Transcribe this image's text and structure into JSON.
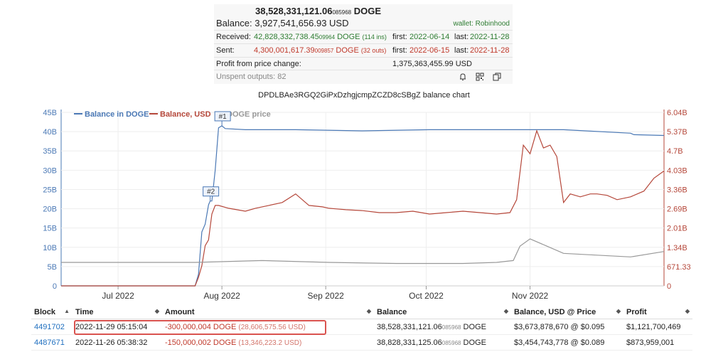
{
  "summary": {
    "balance_main": "38,528,331,121.06",
    "balance_frac": "085968",
    "balance_unit": "DOGE",
    "balance_label": "Balance:",
    "balance_usd": "3,927,541,656.93 USD",
    "wallet_tag": "wallet: Robinhood",
    "received_label": "Received:",
    "received_main": "42,828,332,738.45",
    "received_frac": "09964",
    "received_unit": "DOGE",
    "received_ins": "(114 ins)",
    "received_first_label": "first:",
    "received_first": "2022-06-14",
    "received_last_label": "last:",
    "received_last": "2022-11-28",
    "sent_label": "Sent:",
    "sent_main": "4,300,001,617.39",
    "sent_frac": "009857",
    "sent_unit": "DOGE",
    "sent_outs": "(32 outs)",
    "sent_first_label": "first:",
    "sent_first": "2022-06-15",
    "sent_last_label": "last:",
    "sent_last": "2022-11-28",
    "profit_label": "Profit from price change:",
    "profit_value": "1,375,363,455.99 USD",
    "unspent_label": "Unspent outputs: 82",
    "icons": [
      "bell-icon",
      "qr-code-icon",
      "copy-icon"
    ]
  },
  "chart_title": "DPDLBAe3RGQ2GiPxDzhgjcmpZCZD8cSBgZ balance chart",
  "chart_data": {
    "type": "line",
    "legend": [
      {
        "name": "Balance in DOGE",
        "color": "#4a78b5"
      },
      {
        "name": "Balance, USD",
        "color": "#b5473a"
      },
      {
        "name": "DOGE price",
        "color": "#999999"
      }
    ],
    "x_ticks": [
      "Jul 2022",
      "Aug 2022",
      "Sep 2022",
      "Oct 2022",
      "Nov 2022"
    ],
    "y_left_ticks": [
      "0",
      "5B",
      "10B",
      "15B",
      "20B",
      "25B",
      "30B",
      "35B",
      "40B",
      "45B"
    ],
    "y_right_ticks": [
      "0",
      "671.33",
      "1.34B",
      "2.01B",
      "2.69B",
      "3.36B",
      "4.03B",
      "4.7B",
      "5.37B",
      "6.04B"
    ],
    "y_left_range": [
      0,
      45
    ],
    "y_right_range": [
      0,
      6.04
    ],
    "x_range_days": [
      0,
      180
    ],
    "flags": [
      {
        "label": "#1"
      },
      {
        "label": "#2"
      }
    ],
    "series": [
      {
        "name": "Balance in DOGE",
        "x": [
          0,
          40,
          41,
          42,
          43,
          44,
          44.5,
          45,
          46,
          47,
          48,
          49,
          55,
          70,
          90,
          110,
          150,
          170,
          171,
          180
        ],
        "y": [
          0,
          0,
          3,
          14,
          16,
          21,
          22,
          22,
          30,
          41,
          41.5,
          40.8,
          40.5,
          40.5,
          40.2,
          40.5,
          40.5,
          39.6,
          39.2,
          39.0
        ]
      },
      {
        "name": "Balance, USD",
        "x": [
          0,
          40,
          41,
          42,
          43,
          44,
          45,
          46,
          47,
          50,
          55,
          58,
          62,
          66,
          70,
          74,
          78,
          80,
          82,
          85,
          90,
          95,
          100,
          105,
          110,
          115,
          120,
          125,
          130,
          134,
          136,
          138,
          140,
          142,
          144,
          146,
          148,
          150,
          152,
          155,
          158,
          160,
          163,
          166,
          170,
          174,
          177,
          180
        ],
        "y": [
          0,
          0,
          0.3,
          0.7,
          1.4,
          1.6,
          2.5,
          2.8,
          2.8,
          2.7,
          2.6,
          2.7,
          2.8,
          2.9,
          3.2,
          2.8,
          2.75,
          2.7,
          2.68,
          2.65,
          2.62,
          2.55,
          2.55,
          2.6,
          2.5,
          2.55,
          2.6,
          2.55,
          2.5,
          2.55,
          3.0,
          4.9,
          4.6,
          5.4,
          4.8,
          4.9,
          4.5,
          2.9,
          3.2,
          3.1,
          3.2,
          3.2,
          3.15,
          3.0,
          3.1,
          3.3,
          3.75,
          4.0
        ]
      },
      {
        "name": "DOGE price",
        "x": [
          0,
          20,
          40,
          60,
          80,
          100,
          120,
          130,
          135,
          137,
          140,
          145,
          150,
          160,
          170,
          180
        ],
        "y": [
          0.065,
          0.065,
          0.065,
          0.07,
          0.065,
          0.062,
          0.062,
          0.065,
          0.07,
          0.11,
          0.13,
          0.11,
          0.09,
          0.085,
          0.08,
          0.095
        ]
      }
    ]
  },
  "table": {
    "headers": [
      "Block",
      "Time",
      "Amount",
      "Balance",
      "Balance, USD @ Price",
      "Profit"
    ],
    "rows": [
      {
        "block": "4491702",
        "time": "2022-11-29 05:15:04",
        "amount": "-300,000,004 DOGE",
        "amount_usd": "(28,606,575.56 USD)",
        "balance_main": "38,528,331,121.06",
        "balance_frac": "085968",
        "balance_unit": "DOGE",
        "balance_usd": "$3,673,878,670 @ $0.095",
        "profit": "$1,121,700,469"
      },
      {
        "block": "4487671",
        "time": "2022-11-26 05:38:32",
        "amount": "-150,000,002 DOGE",
        "amount_usd": "(13,346,223.2 USD)",
        "balance_main": "38,828,331,125.06",
        "balance_frac": "085968",
        "balance_unit": "DOGE",
        "balance_usd": "$3,454,743,778 @ $0.089",
        "profit": "$873,959,001"
      }
    ]
  }
}
